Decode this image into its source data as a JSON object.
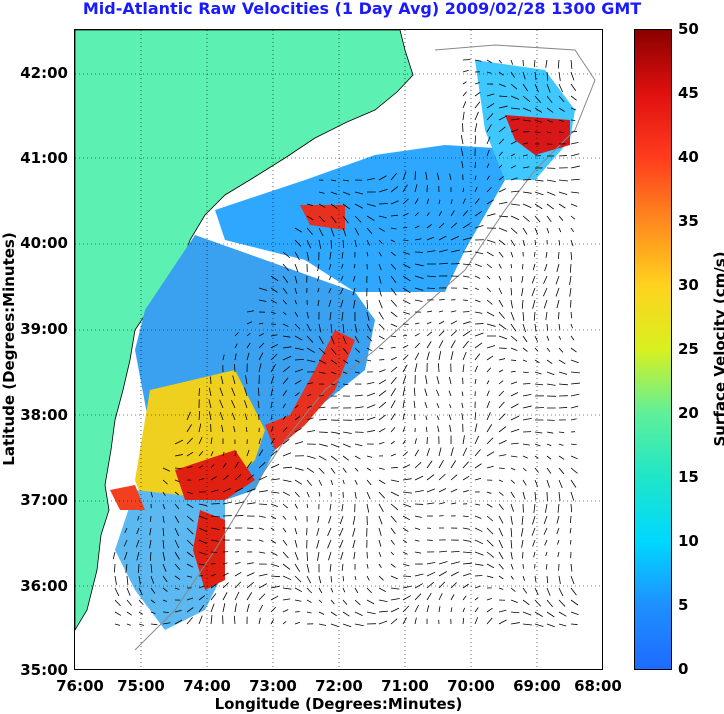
{
  "title": "Mid-Atlantic Raw Velocities (1 Day Avg) 2009/02/28 1300 GMT",
  "x_axis": {
    "label": "Longitude (Degrees:Minutes)",
    "ticks": [
      "76:00",
      "75:00",
      "74:00",
      "73:00",
      "72:00",
      "71:00",
      "70:00",
      "69:00",
      "68:00"
    ]
  },
  "y_axis": {
    "label": "Latitude (Degrees:Minutes)",
    "ticks": [
      "42:00",
      "41:00",
      "40:00",
      "39:00",
      "38:00",
      "37:00",
      "36:00",
      "35:00"
    ]
  },
  "colorbar": {
    "label": "Surface Velocity (cm/s)",
    "ticks": [
      "50",
      "45",
      "40",
      "35",
      "30",
      "25",
      "20",
      "15",
      "10",
      "5",
      "0"
    ],
    "range": [
      0,
      50
    ]
  },
  "colors": {
    "land": "#5cf0b2",
    "title": "#1a1aff"
  }
}
